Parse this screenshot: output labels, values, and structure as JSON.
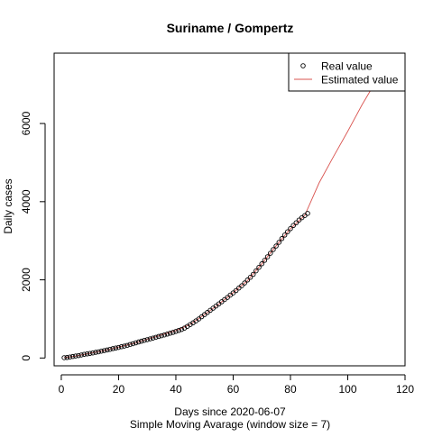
{
  "chart_data": {
    "type": "line",
    "title": "Suriname / Gompertz",
    "xlabel": "Days since 2020-06-07",
    "xlabel_sub": "Simple Moving Avarage (window size = 7)",
    "ylabel": "Daily cases",
    "xlim": [
      -2.5,
      120
    ],
    "ylim": [
      -200,
      7800
    ],
    "x_ticks": [
      0,
      20,
      40,
      60,
      80,
      100,
      120
    ],
    "y_ticks": [
      0,
      2000,
      4000,
      6000
    ],
    "grid": false,
    "legend_position": "top-right",
    "series": [
      {
        "name": "Real value",
        "style": "points",
        "marker": "open-circle",
        "color": "#000000",
        "x": [
          1,
          2,
          3,
          4,
          5,
          6,
          7,
          8,
          9,
          10,
          11,
          12,
          13,
          14,
          15,
          16,
          17,
          18,
          19,
          20,
          21,
          22,
          23,
          24,
          25,
          26,
          27,
          28,
          29,
          30,
          31,
          32,
          33,
          34,
          35,
          36,
          37,
          38,
          39,
          40,
          41,
          42,
          43,
          44,
          45,
          46,
          47,
          48,
          49,
          50,
          51,
          52,
          53,
          54,
          55,
          56,
          57,
          58,
          59,
          60,
          61,
          62,
          63,
          64,
          65,
          66,
          67,
          68,
          69,
          70,
          71,
          72,
          73,
          74,
          75,
          76,
          77,
          78,
          79,
          80,
          81,
          82,
          83,
          84,
          85,
          86
        ],
        "values": [
          8,
          12,
          25,
          38,
          52,
          62,
          78,
          95,
          105,
          118,
          130,
          145,
          158,
          175,
          190,
          205,
          222,
          240,
          255,
          270,
          290,
          305,
          322,
          345,
          365,
          388,
          410,
          430,
          452,
          470,
          490,
          510,
          530,
          552,
          570,
          590,
          612,
          635,
          655,
          680,
          705,
          730,
          765,
          810,
          855,
          900,
          950,
          1000,
          1055,
          1110,
          1165,
          1220,
          1275,
          1330,
          1385,
          1440,
          1495,
          1550,
          1610,
          1665,
          1725,
          1790,
          1850,
          1920,
          1995,
          2065,
          2140,
          2230,
          2320,
          2410,
          2500,
          2590,
          2680,
          2775,
          2865,
          2960,
          3055,
          3145,
          3230,
          3310,
          3390,
          3460,
          3530,
          3590,
          3645,
          3700
        ]
      },
      {
        "name": "Estimated value",
        "style": "line",
        "color": "#d9534f",
        "x": [
          1,
          5,
          10,
          15,
          20,
          25,
          30,
          35,
          40,
          45,
          50,
          55,
          60,
          65,
          70,
          75,
          80,
          85,
          90,
          95,
          100,
          105,
          110,
          115,
          120
        ],
        "values": [
          8,
          50,
          120,
          190,
          280,
          370,
          480,
          590,
          700,
          860,
          1110,
          1380,
          1670,
          1980,
          2410,
          2870,
          3310,
          3650,
          4480,
          5150,
          5800,
          6480,
          7100,
          7700,
          8300
        ]
      }
    ]
  }
}
